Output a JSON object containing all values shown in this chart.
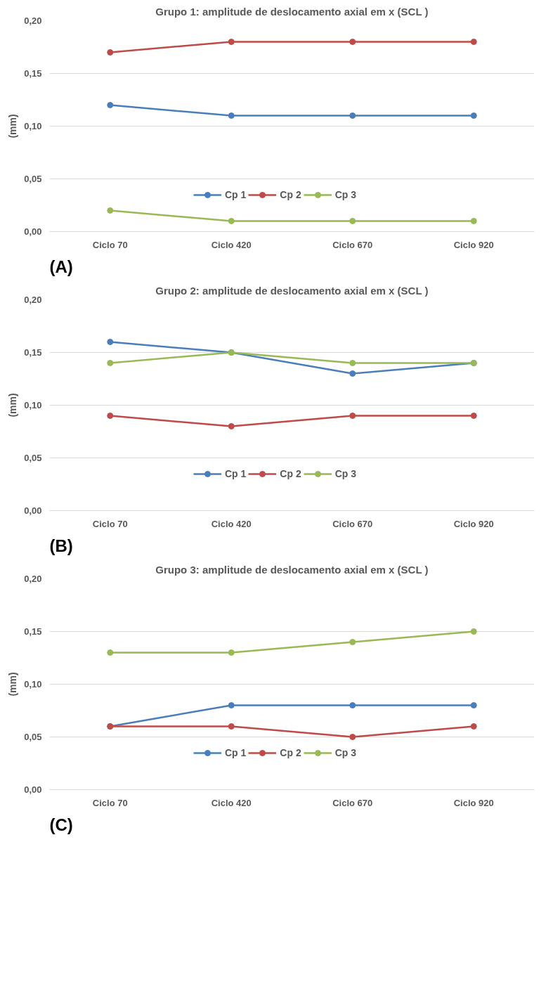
{
  "chart_data": [
    {
      "type": "line",
      "title": "Grupo 1: amplitude de deslocamento axial em x (SCL )",
      "ylabel": "(mm)",
      "categories": [
        "Ciclo 70",
        "Ciclo 420",
        "Ciclo 670",
        "Ciclo 920"
      ],
      "series": [
        {
          "name": "Cp 1",
          "color": "#4a7ebb",
          "values": [
            0.12,
            0.11,
            0.11,
            0.11
          ]
        },
        {
          "name": "Cp 2",
          "color": "#be4b48",
          "values": [
            0.17,
            0.18,
            0.18,
            0.18
          ]
        },
        {
          "name": "Cp 3",
          "color": "#98b954",
          "values": [
            0.02,
            0.01,
            0.01,
            0.01
          ]
        }
      ],
      "ylim": [
        0,
        0.2
      ],
      "yticks": [
        {
          "value": 0,
          "label": "0,00"
        },
        {
          "value": 0.05,
          "label": "0,05"
        },
        {
          "value": 0.1,
          "label": "0,10"
        },
        {
          "value": 0.15,
          "label": "0,15"
        },
        {
          "value": 0.2,
          "label": "0,20"
        }
      ],
      "grid": "y",
      "legend": "bottom",
      "marker": "circle",
      "annotations": [
        "(A)"
      ]
    },
    {
      "type": "line",
      "title": "Grupo 2: amplitude de deslocamento axial em x (SCL )",
      "ylabel": "(mm)",
      "categories": [
        "Ciclo 70",
        "Ciclo 420",
        "Ciclo 670",
        "Ciclo 920"
      ],
      "series": [
        {
          "name": "Cp 1",
          "color": "#4a7ebb",
          "values": [
            0.16,
            0.15,
            0.13,
            0.14
          ]
        },
        {
          "name": "Cp 2",
          "color": "#be4b48",
          "values": [
            0.09,
            0.08,
            0.09,
            0.09
          ]
        },
        {
          "name": "Cp 3",
          "color": "#98b954",
          "values": [
            0.14,
            0.15,
            0.14,
            0.14
          ]
        }
      ],
      "ylim": [
        0,
        0.2
      ],
      "yticks": [
        {
          "value": 0,
          "label": "0,00"
        },
        {
          "value": 0.05,
          "label": "0,05"
        },
        {
          "value": 0.1,
          "label": "0,10"
        },
        {
          "value": 0.15,
          "label": "0,15"
        },
        {
          "value": 0.2,
          "label": "0,20"
        }
      ],
      "grid": "y",
      "legend": "bottom",
      "marker": "circle",
      "annotations": [
        "(B)"
      ]
    },
    {
      "type": "line",
      "title": "Grupo 3: amplitude de deslocamento axial em x (SCL )",
      "ylabel": "(mm)",
      "categories": [
        "Ciclo 70",
        "Ciclo 420",
        "Ciclo 670",
        "Ciclo 920"
      ],
      "series": [
        {
          "name": "Cp 1",
          "color": "#4a7ebb",
          "values": [
            0.06,
            0.08,
            0.08,
            0.08
          ]
        },
        {
          "name": "Cp 2",
          "color": "#be4b48",
          "values": [
            0.06,
            0.06,
            0.05,
            0.06
          ]
        },
        {
          "name": "Cp 3",
          "color": "#98b954",
          "values": [
            0.13,
            0.13,
            0.14,
            0.15
          ]
        }
      ],
      "ylim": [
        0,
        0.2
      ],
      "yticks": [
        {
          "value": 0,
          "label": "0,00"
        },
        {
          "value": 0.05,
          "label": "0,05"
        },
        {
          "value": 0.1,
          "label": "0,10"
        },
        {
          "value": 0.15,
          "label": "0,15"
        },
        {
          "value": 0.2,
          "label": "0,20"
        }
      ],
      "grid": "y",
      "legend": "bottom",
      "marker": "circle",
      "annotations": [
        "(C)"
      ]
    }
  ]
}
